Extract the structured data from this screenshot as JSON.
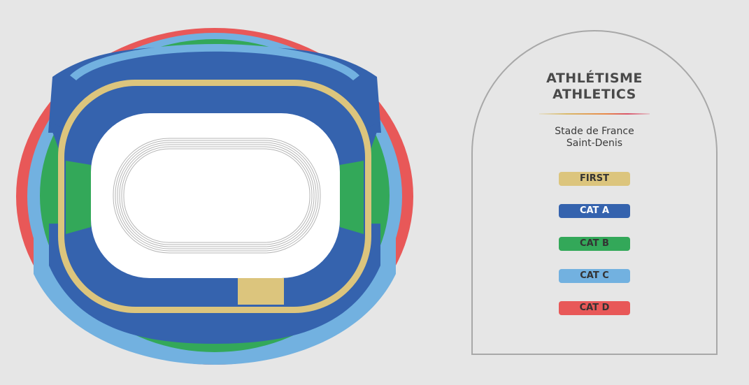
{
  "event": {
    "title_fr": "ATHLÉTISME",
    "title_en": "ATHLETICS"
  },
  "venue": {
    "name": "Stade de France",
    "city": "Saint-Denis"
  },
  "categories": [
    {
      "key": "first",
      "label": "FIRST",
      "color": "#dcc57d"
    },
    {
      "key": "cat-a",
      "label": "CAT A",
      "color": "#3563ae"
    },
    {
      "key": "cat-b",
      "label": "CAT B",
      "color": "#33a859"
    },
    {
      "key": "cat-c",
      "label": "CAT C",
      "color": "#72b1e0"
    },
    {
      "key": "cat-d",
      "label": "CAT D",
      "color": "#e85858"
    }
  ],
  "colors": {
    "background": "#e6e6e6",
    "field": "#ffffff",
    "track_lines": "#b5b5b5",
    "panel_border": "#a8a8a8"
  }
}
